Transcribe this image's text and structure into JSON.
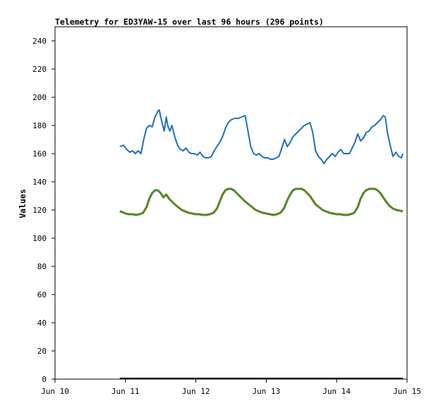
{
  "chart_data": {
    "type": "line",
    "title": "Telemetry for ED3YAW-15 over last 96 hours (296 points)",
    "xlabel": "",
    "ylabel": "Values",
    "ylim": [
      0,
      250
    ],
    "yticks": [
      0,
      20,
      40,
      60,
      80,
      100,
      120,
      140,
      160,
      180,
      200,
      220,
      240
    ],
    "xlim": [
      0,
      5
    ],
    "xticks": [
      {
        "x": 0,
        "label": "Jun 10"
      },
      {
        "x": 1,
        "label": "Jun 11"
      },
      {
        "x": 2,
        "label": "Jun 12"
      },
      {
        "x": 3,
        "label": "Jun 13"
      },
      {
        "x": 4,
        "label": "Jun 14"
      },
      {
        "x": 5,
        "label": "Jun 15"
      }
    ],
    "grid": false,
    "series": [
      {
        "color": "#1f6fbf",
        "points": [
          [
            0.92,
            165
          ],
          [
            0.97,
            166
          ],
          [
            1.02,
            163
          ],
          [
            1.06,
            161
          ],
          [
            1.1,
            162
          ],
          [
            1.14,
            160
          ],
          [
            1.18,
            162
          ],
          [
            1.22,
            160
          ],
          [
            1.26,
            170
          ],
          [
            1.3,
            178
          ],
          [
            1.34,
            180
          ],
          [
            1.38,
            179
          ],
          [
            1.42,
            186
          ],
          [
            1.46,
            190
          ],
          [
            1.48,
            191
          ],
          [
            1.52,
            182
          ],
          [
            1.55,
            176
          ],
          [
            1.58,
            186
          ],
          [
            1.6,
            180
          ],
          [
            1.63,
            176
          ],
          [
            1.66,
            180
          ],
          [
            1.7,
            172
          ],
          [
            1.74,
            166
          ],
          [
            1.78,
            163
          ],
          [
            1.82,
            162
          ],
          [
            1.86,
            164
          ],
          [
            1.9,
            161
          ],
          [
            1.94,
            160
          ],
          [
            1.98,
            160
          ],
          [
            2.02,
            159
          ],
          [
            2.06,
            161
          ],
          [
            2.1,
            158
          ],
          [
            2.14,
            157
          ],
          [
            2.18,
            157
          ],
          [
            2.22,
            158
          ],
          [
            2.26,
            162
          ],
          [
            2.3,
            165
          ],
          [
            2.34,
            168
          ],
          [
            2.38,
            172
          ],
          [
            2.42,
            178
          ],
          [
            2.46,
            182
          ],
          [
            2.5,
            184
          ],
          [
            2.55,
            185
          ],
          [
            2.6,
            185
          ],
          [
            2.65,
            186
          ],
          [
            2.7,
            187
          ],
          [
            2.74,
            176
          ],
          [
            2.78,
            165
          ],
          [
            2.82,
            160
          ],
          [
            2.86,
            159
          ],
          [
            2.9,
            160
          ],
          [
            2.94,
            158
          ],
          [
            2.98,
            157
          ],
          [
            3.02,
            157
          ],
          [
            3.06,
            156
          ],
          [
            3.1,
            156
          ],
          [
            3.14,
            157
          ],
          [
            3.18,
            158
          ],
          [
            3.22,
            164
          ],
          [
            3.26,
            170
          ],
          [
            3.3,
            165
          ],
          [
            3.34,
            168
          ],
          [
            3.38,
            172
          ],
          [
            3.42,
            174
          ],
          [
            3.46,
            176
          ],
          [
            3.5,
            178
          ],
          [
            3.54,
            180
          ],
          [
            3.58,
            181
          ],
          [
            3.62,
            182
          ],
          [
            3.66,
            175
          ],
          [
            3.7,
            162
          ],
          [
            3.74,
            158
          ],
          [
            3.78,
            156
          ],
          [
            3.82,
            153
          ],
          [
            3.86,
            156
          ],
          [
            3.9,
            158
          ],
          [
            3.94,
            160
          ],
          [
            3.98,
            158
          ],
          [
            4.02,
            161
          ],
          [
            4.06,
            163
          ],
          [
            4.1,
            160
          ],
          [
            4.14,
            160
          ],
          [
            4.18,
            160
          ],
          [
            4.22,
            164
          ],
          [
            4.26,
            168
          ],
          [
            4.3,
            174
          ],
          [
            4.34,
            169
          ],
          [
            4.38,
            171
          ],
          [
            4.42,
            175
          ],
          [
            4.46,
            176
          ],
          [
            4.5,
            179
          ],
          [
            4.54,
            180
          ],
          [
            4.58,
            182
          ],
          [
            4.62,
            184
          ],
          [
            4.66,
            187
          ],
          [
            4.69,
            186
          ],
          [
            4.72,
            175
          ],
          [
            4.76,
            166
          ],
          [
            4.8,
            158
          ],
          [
            4.84,
            161
          ],
          [
            4.88,
            158
          ],
          [
            4.92,
            157
          ],
          [
            4.94,
            160
          ]
        ]
      },
      {
        "color": "#1faa1f",
        "accent": "#c0392b",
        "points": [
          [
            0.92,
            119
          ],
          [
            0.96,
            118.5
          ],
          [
            1.0,
            117.5
          ],
          [
            1.05,
            117
          ],
          [
            1.1,
            117
          ],
          [
            1.15,
            116.5
          ],
          [
            1.2,
            117
          ],
          [
            1.25,
            118
          ],
          [
            1.3,
            122
          ],
          [
            1.34,
            128
          ],
          [
            1.38,
            132
          ],
          [
            1.42,
            134
          ],
          [
            1.46,
            134
          ],
          [
            1.5,
            132
          ],
          [
            1.54,
            129
          ],
          [
            1.58,
            131
          ],
          [
            1.62,
            128
          ],
          [
            1.66,
            126
          ],
          [
            1.7,
            124
          ],
          [
            1.75,
            122
          ],
          [
            1.8,
            120
          ],
          [
            1.85,
            119
          ],
          [
            1.9,
            118
          ],
          [
            1.95,
            117.5
          ],
          [
            2.0,
            117
          ],
          [
            2.05,
            117
          ],
          [
            2.1,
            116.5
          ],
          [
            2.15,
            116.5
          ],
          [
            2.2,
            117
          ],
          [
            2.25,
            118
          ],
          [
            2.3,
            121
          ],
          [
            2.34,
            126
          ],
          [
            2.38,
            131
          ],
          [
            2.42,
            134
          ],
          [
            2.46,
            135
          ],
          [
            2.5,
            135
          ],
          [
            2.54,
            134
          ],
          [
            2.58,
            132
          ],
          [
            2.62,
            130
          ],
          [
            2.66,
            128
          ],
          [
            2.7,
            126
          ],
          [
            2.75,
            124
          ],
          [
            2.8,
            122
          ],
          [
            2.85,
            120
          ],
          [
            2.9,
            119
          ],
          [
            2.95,
            118
          ],
          [
            3.0,
            117.5
          ],
          [
            3.05,
            117
          ],
          [
            3.1,
            116.5
          ],
          [
            3.15,
            117
          ],
          [
            3.2,
            118
          ],
          [
            3.25,
            121
          ],
          [
            3.3,
            127
          ],
          [
            3.34,
            131
          ],
          [
            3.38,
            134
          ],
          [
            3.42,
            135
          ],
          [
            3.46,
            135
          ],
          [
            3.5,
            135
          ],
          [
            3.54,
            134
          ],
          [
            3.58,
            132
          ],
          [
            3.62,
            130
          ],
          [
            3.66,
            127
          ],
          [
            3.7,
            124
          ],
          [
            3.75,
            122
          ],
          [
            3.8,
            120
          ],
          [
            3.85,
            119
          ],
          [
            3.9,
            118
          ],
          [
            3.95,
            117.5
          ],
          [
            4.0,
            117
          ],
          [
            4.05,
            117
          ],
          [
            4.1,
            116.5
          ],
          [
            4.15,
            116.5
          ],
          [
            4.2,
            117
          ],
          [
            4.25,
            118
          ],
          [
            4.3,
            122
          ],
          [
            4.34,
            128
          ],
          [
            4.38,
            132
          ],
          [
            4.42,
            134
          ],
          [
            4.46,
            135
          ],
          [
            4.5,
            135
          ],
          [
            4.54,
            135
          ],
          [
            4.58,
            134
          ],
          [
            4.62,
            132
          ],
          [
            4.66,
            129
          ],
          [
            4.7,
            126
          ],
          [
            4.75,
            123
          ],
          [
            4.8,
            121
          ],
          [
            4.85,
            120
          ],
          [
            4.9,
            119.5
          ],
          [
            4.94,
            119
          ]
        ]
      }
    ]
  }
}
